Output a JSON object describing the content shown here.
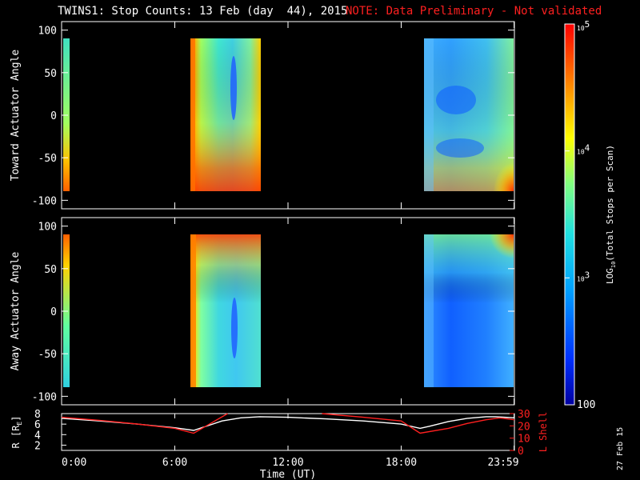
{
  "title": {
    "main": "TWINS1: Stop Counts: 13 Feb (day  44), 2015",
    "note": "NOTE: Data Preliminary - Not validated",
    "note_color": "#ff2020"
  },
  "date_stamp": "27 Feb 15",
  "chart_data": [
    {
      "type": "heatmap",
      "name": "toward-panel",
      "ylabel": "Toward Actuator Angle",
      "ylim": [
        -110,
        110
      ],
      "yticks": [
        100,
        50,
        0,
        -50,
        -100
      ],
      "ytick_labels": [
        "100",
        "50",
        "0",
        "-50",
        "-100"
      ],
      "xlim": [
        0,
        24
      ],
      "data_blocks": [
        {
          "t_start": 0.0,
          "t_end": 0.17,
          "angle_range": [
            -90,
            90
          ],
          "level": "mid-high"
        },
        {
          "t_start": 6.95,
          "t_end": 10.4,
          "angle_range": [
            -90,
            90
          ],
          "level": "mid-high"
        },
        {
          "t_start": 19.0,
          "t_end": 24.0,
          "angle_range": [
            -90,
            90
          ],
          "level": "low-mid"
        }
      ]
    },
    {
      "type": "heatmap",
      "name": "away-panel",
      "ylabel": "Away Actuator Angle",
      "ylim": [
        -110,
        110
      ],
      "yticks": [
        100,
        50,
        0,
        -50,
        -100
      ],
      "ytick_labels": [
        "100",
        "50",
        "0",
        "-50",
        "-100"
      ],
      "xlim": [
        0,
        24
      ],
      "data_blocks": [
        {
          "t_start": 0.0,
          "t_end": 0.17,
          "angle_range": [
            -90,
            90
          ],
          "level": "mid-high"
        },
        {
          "t_start": 6.95,
          "t_end": 10.4,
          "angle_range": [
            -90,
            90
          ],
          "level": "mid-high"
        },
        {
          "t_start": 19.0,
          "t_end": 24.0,
          "angle_range": [
            -90,
            90
          ],
          "level": "low"
        }
      ]
    },
    {
      "type": "line",
      "name": "orbit-panel",
      "ylabel_left": "R [R",
      "ylabel_left_sub": "E",
      "ylabel_left_close": "]",
      "ylabel_right": "L Shell",
      "ylim_left": [
        1,
        8
      ],
      "yticks_left": [
        8,
        6,
        4,
        2
      ],
      "ylim_right": [
        0,
        30
      ],
      "yticks_right": [
        30,
        20,
        10,
        0
      ],
      "xlabel": "Time (UT)",
      "xticks": [
        0,
        6,
        12,
        18,
        23.983
      ],
      "xtick_labels": [
        "0:00",
        "6:00",
        "12:00",
        "18:00",
        "23:59"
      ],
      "series": [
        {
          "name": "R",
          "color": "#ffffff",
          "axis": "left",
          "x": [
            0,
            2,
            4,
            6,
            7.0,
            7.5,
            8.5,
            9.5,
            10.5,
            12,
            14,
            16,
            18,
            19.0,
            19.5,
            20.5,
            21.5,
            22.5,
            23.0,
            24.0
          ],
          "y": [
            7.1,
            6.6,
            6.0,
            5.3,
            4.8,
            5.4,
            6.6,
            7.2,
            7.4,
            7.3,
            7.0,
            6.6,
            6.0,
            5.2,
            5.6,
            6.5,
            7.1,
            7.4,
            7.4,
            7.2
          ]
        },
        {
          "name": "L Shell",
          "color": "#ff2020",
          "axis": "right",
          "segments": [
            {
              "x": [
                0,
                2,
                4,
                6,
                7.0,
                8.8
              ],
              "y": [
                27,
                24.5,
                21.5,
                18,
                14,
                31
              ]
            },
            {
              "x": [
                13.8,
                16,
                18,
                19.0,
                20.5,
                21.5,
                22.5,
                23.2,
                24.0
              ],
              "y": [
                30,
                27,
                24,
                14,
                18,
                22,
                25,
                26.5,
                25
              ]
            }
          ]
        }
      ]
    },
    {
      "type": "colorbar",
      "name": "colorbar",
      "label_prefix": "LOG",
      "label_sub": "10",
      "label_suffix": "(Total Stops per Scan)",
      "scale": "log",
      "range": [
        100,
        100000
      ],
      "ticks": [
        {
          "value": 100000,
          "base": "10",
          "exp": "5"
        },
        {
          "value": 10000,
          "base": "10",
          "exp": "4"
        },
        {
          "value": 1000,
          "base": "10",
          "exp": "3"
        },
        {
          "value": 100,
          "text": "100"
        }
      ]
    }
  ]
}
